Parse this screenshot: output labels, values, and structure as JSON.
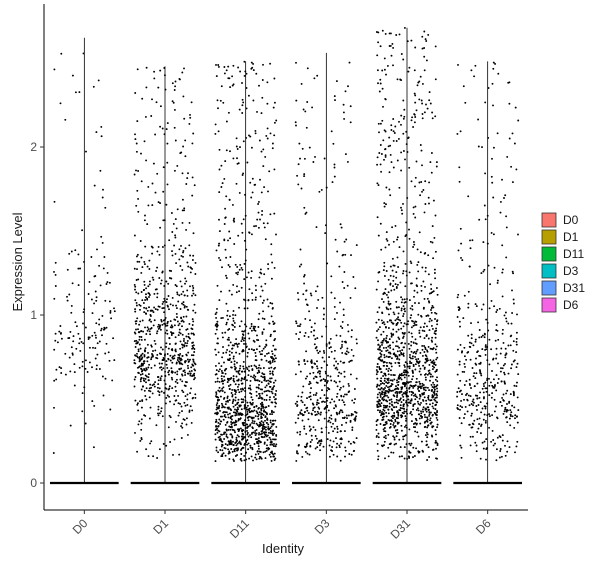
{
  "chart_data": {
    "type": "scatter",
    "subtype": "violin-jitter",
    "xlabel": "Identity",
    "ylabel": "Expression Level",
    "categories": [
      "D0",
      "D1",
      "D11",
      "D3",
      "D31",
      "D6"
    ],
    "ylim": [
      -0.15,
      2.85
    ],
    "yticks": [
      0,
      1,
      2
    ],
    "grid": false,
    "legend": {
      "position": "right",
      "entries": [
        {
          "label": "D0",
          "color": "#F8766D"
        },
        {
          "label": "D1",
          "color": "#B79F00"
        },
        {
          "label": "D11",
          "color": "#00BA38"
        },
        {
          "label": "D3",
          "color": "#00BFC4"
        },
        {
          "label": "D31",
          "color": "#619CFF"
        },
        {
          "label": "D6",
          "color": "#F564E3"
        }
      ]
    },
    "violin_max": [
      2.65,
      2.48,
      2.51,
      2.56,
      2.71,
      2.51
    ],
    "point_density": [
      {
        "group": "D0",
        "nonzero_points": 170,
        "center": 0.9
      },
      {
        "group": "D1",
        "nonzero_points": 800,
        "center": 0.8
      },
      {
        "group": "D11",
        "nonzero_points": 1200,
        "center": 0.45
      },
      {
        "group": "D3",
        "nonzero_points": 500,
        "center": 0.5
      },
      {
        "group": "D31",
        "nonzero_points": 1300,
        "center": 0.6
      },
      {
        "group": "D6",
        "nonzero_points": 450,
        "center": 0.55
      }
    ],
    "zero_values": [
      0,
      0,
      0,
      0,
      0,
      0
    ]
  }
}
